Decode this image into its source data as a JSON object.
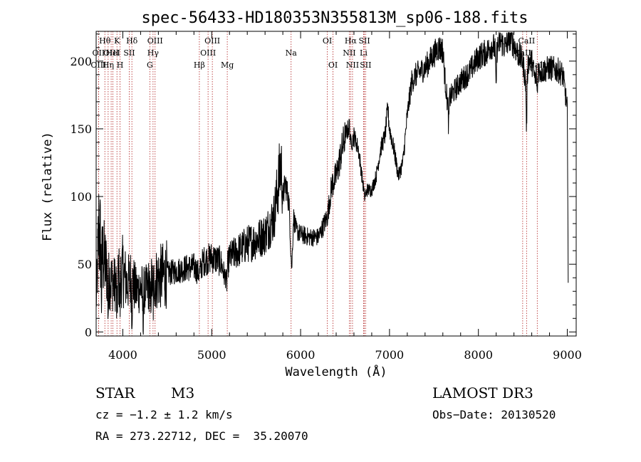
{
  "chart_data": {
    "type": "line",
    "title": "spec-56433-HD180353N355813M_sp06-188.fits",
    "xlabel": "Wavelength (Å)",
    "ylabel": "Flux (relative)",
    "xlim": [
      3700,
      9100
    ],
    "ylim": [
      -3,
      222
    ],
    "xticks": [
      4000,
      5000,
      6000,
      7000,
      8000,
      9000
    ],
    "yticks": [
      0,
      50,
      100,
      150,
      200
    ],
    "grid": false,
    "spectrum_anchors": [
      [
        3700,
        20
      ],
      [
        3730,
        75
      ],
      [
        3760,
        60
      ],
      [
        3800,
        50
      ],
      [
        3850,
        40
      ],
      [
        3900,
        35
      ],
      [
        3950,
        40
      ],
      [
        4000,
        45
      ],
      [
        4050,
        35
      ],
      [
        4100,
        40
      ],
      [
        4150,
        30
      ],
      [
        4200,
        33
      ],
      [
        4250,
        30
      ],
      [
        4300,
        35
      ],
      [
        4350,
        38
      ],
      [
        4400,
        40
      ],
      [
        4500,
        43
      ],
      [
        4600,
        45
      ],
      [
        4700,
        47
      ],
      [
        4800,
        48
      ],
      [
        4860,
        43
      ],
      [
        4900,
        52
      ],
      [
        5000,
        55
      ],
      [
        5100,
        52
      ],
      [
        5150,
        40
      ],
      [
        5200,
        55
      ],
      [
        5300,
        60
      ],
      [
        5400,
        65
      ],
      [
        5500,
        68
      ],
      [
        5600,
        72
      ],
      [
        5700,
        85
      ],
      [
        5750,
        110
      ],
      [
        5780,
        125
      ],
      [
        5800,
        100
      ],
      [
        5830,
        110
      ],
      [
        5870,
        95
      ],
      [
        5890,
        60
      ],
      [
        5900,
        45
      ],
      [
        5920,
        85
      ],
      [
        5950,
        75
      ],
      [
        6000,
        72
      ],
      [
        6100,
        70
      ],
      [
        6200,
        70
      ],
      [
        6300,
        85
      ],
      [
        6350,
        108
      ],
      [
        6400,
        115
      ],
      [
        6450,
        130
      ],
      [
        6500,
        145
      ],
      [
        6550,
        152
      ],
      [
        6580,
        140
      ],
      [
        6600,
        145
      ],
      [
        6650,
        135
      ],
      [
        6700,
        110
      ],
      [
        6720,
        100
      ],
      [
        6750,
        105
      ],
      [
        6800,
        105
      ],
      [
        6850,
        115
      ],
      [
        6900,
        135
      ],
      [
        6950,
        145
      ],
      [
        6980,
        165
      ],
      [
        7000,
        150
      ],
      [
        7050,
        135
      ],
      [
        7100,
        115
      ],
      [
        7150,
        125
      ],
      [
        7200,
        160
      ],
      [
        7250,
        185
      ],
      [
        7300,
        190
      ],
      [
        7400,
        195
      ],
      [
        7500,
        205
      ],
      [
        7550,
        210
      ],
      [
        7600,
        208
      ],
      [
        7620,
        190
      ],
      [
        7650,
        170
      ],
      [
        7700,
        175
      ],
      [
        7800,
        185
      ],
      [
        7900,
        192
      ],
      [
        8000,
        203
      ],
      [
        8100,
        207
      ],
      [
        8150,
        212
      ],
      [
        8200,
        208
      ],
      [
        8250,
        215
      ],
      [
        8300,
        210
      ],
      [
        8350,
        218
      ],
      [
        8400,
        212
      ],
      [
        8450,
        205
      ],
      [
        8500,
        200
      ],
      [
        8540,
        180
      ],
      [
        8560,
        200
      ],
      [
        8600,
        200
      ],
      [
        8640,
        185
      ],
      [
        8660,
        195
      ],
      [
        8700,
        192
      ],
      [
        8800,
        195
      ],
      [
        8900,
        193
      ],
      [
        8950,
        190
      ],
      [
        8980,
        175
      ],
      [
        9000,
        165
      ],
      [
        9010,
        38
      ]
    ],
    "absorption_dips": [
      {
        "x": 3760,
        "depth": 30
      },
      {
        "x": 3835,
        "depth": 25
      },
      {
        "x": 3934,
        "depth": 28
      },
      {
        "x": 3969,
        "depth": 22
      },
      {
        "x": 4102,
        "depth": 20
      },
      {
        "x": 4227,
        "depth": 22
      },
      {
        "x": 4310,
        "depth": 18
      },
      {
        "x": 4340,
        "depth": 18
      },
      {
        "x": 5167,
        "depth": 12
      },
      {
        "x": 6563,
        "depth": 8
      },
      {
        "x": 7665,
        "depth": 20
      },
      {
        "x": 8198,
        "depth": 30
      },
      {
        "x": 8542,
        "depth": 30
      },
      {
        "x": 8662,
        "depth": 20
      }
    ],
    "spectral_lines": [
      {
        "label": "Hθ",
        "wavelength": 3798,
        "row": 1
      },
      {
        "label": "OII",
        "wavelength": 3727,
        "row": 2
      },
      {
        "label": "OIII",
        "wavelength": 3869,
        "row": 2
      },
      {
        "label": "HeI",
        "wavelength": 3889,
        "row": 2
      },
      {
        "label": "OIII",
        "wavelength": 3727,
        "row": 3
      },
      {
        "label": "Hη",
        "wavelength": 3835,
        "row": 3
      },
      {
        "label": "K",
        "wavelength": 3934,
        "row": 1
      },
      {
        "label": "SII",
        "wavelength": 4072,
        "row": 2
      },
      {
        "label": "H",
        "wavelength": 3969,
        "row": 3
      },
      {
        "label": "Hδ",
        "wavelength": 4102,
        "row": 1
      },
      {
        "label": "OIII",
        "wavelength": 4363,
        "row": 1
      },
      {
        "label": "Hγ",
        "wavelength": 4340,
        "row": 2
      },
      {
        "label": "G",
        "wavelength": 4304,
        "row": 3
      },
      {
        "label": "OIII",
        "wavelength": 5007,
        "row": 1
      },
      {
        "label": "OIII",
        "wavelength": 4959,
        "row": 2
      },
      {
        "label": "Hβ",
        "wavelength": 4861,
        "row": 3
      },
      {
        "label": "Mg",
        "wavelength": 5175,
        "row": 3
      },
      {
        "label": "Na",
        "wavelength": 5893,
        "row": 2
      },
      {
        "label": "OI",
        "wavelength": 6300,
        "row": 1
      },
      {
        "label": "OI",
        "wavelength": 6364,
        "row": 3
      },
      {
        "label": "Hα",
        "wavelength": 6563,
        "row": 1
      },
      {
        "label": "NII",
        "wavelength": 6548,
        "row": 2
      },
      {
        "label": "NII",
        "wavelength": 6584,
        "row": 3
      },
      {
        "label": "SII",
        "wavelength": 6717,
        "row": 1
      },
      {
        "label": "Li",
        "wavelength": 6708,
        "row": 2
      },
      {
        "label": "SII",
        "wavelength": 6731,
        "row": 3
      },
      {
        "label": "CaII",
        "wavelength": 8542,
        "row": 1
      },
      {
        "label": "CaII",
        "wavelength": 8498,
        "row": 2
      },
      {
        "label": "CaII",
        "wavelength": 8662,
        "row": 3
      }
    ]
  },
  "footer": {
    "object_class": "STAR",
    "subclass": "M3",
    "survey": "LAMOST DR3",
    "cz": "cz = −1.2 ± 1.2 km/s",
    "obs_date": "Obs−Date: 20130520",
    "coords": "RA = 273.22712, DEC =  35.20070"
  }
}
